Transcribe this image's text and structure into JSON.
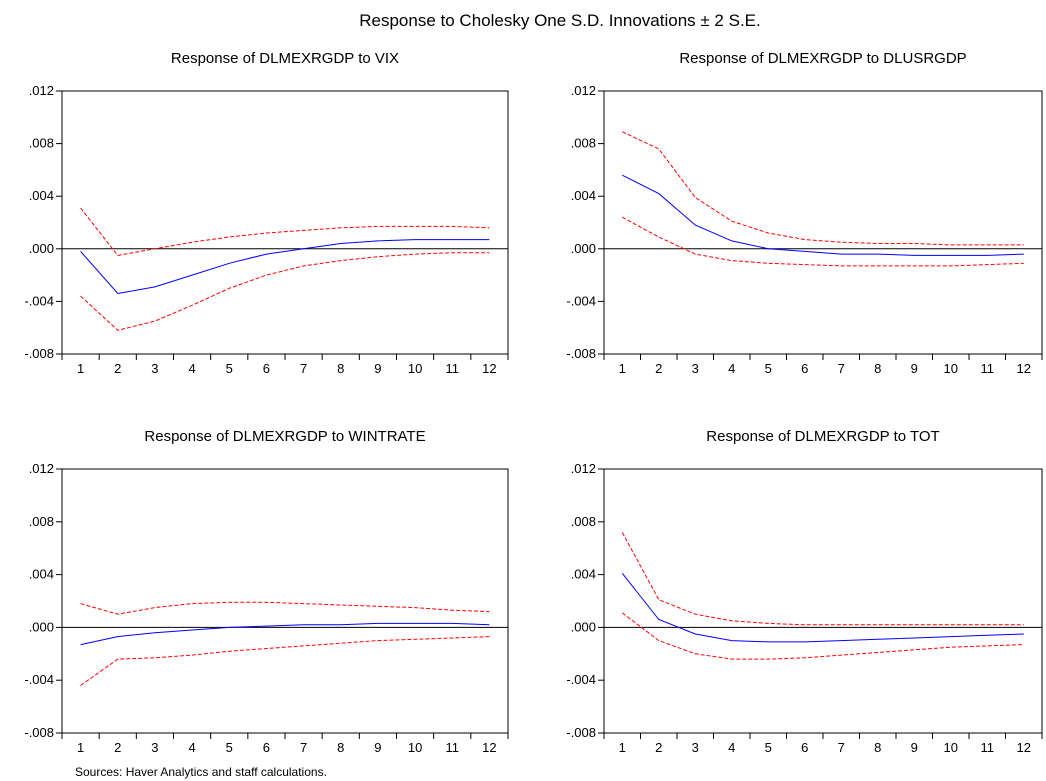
{
  "figure": {
    "title": "Response to Cholesky One S.D. Innovations ± 2 S.E.",
    "source": "Sources: Haver Analytics and staff calculations."
  },
  "chart_data": [
    {
      "type": "line",
      "title": "Response of DLMEXRGDP to VIX",
      "x": [
        1,
        2,
        3,
        4,
        5,
        6,
        7,
        8,
        9,
        10,
        11,
        12
      ],
      "ylim": [
        -0.008,
        0.012
      ],
      "yticks": [
        ".012",
        ".008",
        ".004",
        ".000",
        "-.004",
        "-.008"
      ],
      "yticks_values": [
        0.012,
        0.008,
        0.004,
        0.0,
        -0.004,
        -0.008
      ],
      "xticks": [
        "1",
        "2",
        "3",
        "4",
        "5",
        "6",
        "7",
        "8",
        "9",
        "10",
        "11",
        "12"
      ],
      "series": [
        {
          "role": "response",
          "color": "#0000ff",
          "dashed": false,
          "values": [
            -0.0002,
            -0.0034,
            -0.0029,
            -0.002,
            -0.0011,
            -0.0004,
            0.0,
            0.0004,
            0.0006,
            0.0007,
            0.0007,
            0.0007
          ]
        },
        {
          "role": "upper band",
          "color": "#ff0000",
          "dashed": true,
          "values": [
            0.0031,
            -0.0005,
            0.0,
            0.0005,
            0.0009,
            0.0012,
            0.0014,
            0.0016,
            0.0017,
            0.0017,
            0.0017,
            0.0016
          ]
        },
        {
          "role": "lower band",
          "color": "#ff0000",
          "dashed": true,
          "values": [
            -0.0036,
            -0.0062,
            -0.0055,
            -0.0043,
            -0.003,
            -0.002,
            -0.0013,
            -0.0009,
            -0.0006,
            -0.0004,
            -0.0003,
            -0.0003
          ]
        }
      ]
    },
    {
      "type": "line",
      "title": "Response of DLMEXRGDP to DLUSRGDP",
      "x": [
        1,
        2,
        3,
        4,
        5,
        6,
        7,
        8,
        9,
        10,
        11,
        12
      ],
      "ylim": [
        -0.008,
        0.012
      ],
      "yticks": [
        ".012",
        ".008",
        ".004",
        ".000",
        "-.004",
        "-.008"
      ],
      "yticks_values": [
        0.012,
        0.008,
        0.004,
        0.0,
        -0.004,
        -0.008
      ],
      "xticks": [
        "1",
        "2",
        "3",
        "4",
        "5",
        "6",
        "7",
        "8",
        "9",
        "10",
        "11",
        "12"
      ],
      "series": [
        {
          "role": "response",
          "color": "#0000ff",
          "dashed": false,
          "values": [
            0.0056,
            0.0042,
            0.0018,
            0.0006,
            0.0,
            -0.0002,
            -0.0004,
            -0.0004,
            -0.0005,
            -0.0005,
            -0.0005,
            -0.0004
          ]
        },
        {
          "role": "upper band",
          "color": "#ff0000",
          "dashed": true,
          "values": [
            0.0089,
            0.0076,
            0.0039,
            0.0021,
            0.0012,
            0.0007,
            0.0005,
            0.0004,
            0.0004,
            0.0003,
            0.0003,
            0.0003
          ]
        },
        {
          "role": "lower band",
          "color": "#ff0000",
          "dashed": true,
          "values": [
            0.0024,
            0.0009,
            -0.0004,
            -0.0009,
            -0.0011,
            -0.0012,
            -0.0013,
            -0.0013,
            -0.0013,
            -0.0013,
            -0.0012,
            -0.0011
          ]
        }
      ]
    },
    {
      "type": "line",
      "title": "Response of DLMEXRGDP to WINTRATE",
      "x": [
        1,
        2,
        3,
        4,
        5,
        6,
        7,
        8,
        9,
        10,
        11,
        12
      ],
      "ylim": [
        -0.008,
        0.012
      ],
      "yticks": [
        ".012",
        ".008",
        ".004",
        ".000",
        "-.004",
        "-.008"
      ],
      "yticks_values": [
        0.012,
        0.008,
        0.004,
        0.0,
        -0.004,
        -0.008
      ],
      "xticks": [
        "1",
        "2",
        "3",
        "4",
        "5",
        "6",
        "7",
        "8",
        "9",
        "10",
        "11",
        "12"
      ],
      "series": [
        {
          "role": "response",
          "color": "#0000ff",
          "dashed": false,
          "values": [
            -0.0013,
            -0.0007,
            -0.0004,
            -0.0002,
            0.0,
            0.0001,
            0.0002,
            0.0002,
            0.0003,
            0.0003,
            0.0003,
            0.0002
          ]
        },
        {
          "role": "upper band",
          "color": "#ff0000",
          "dashed": true,
          "values": [
            0.0018,
            0.001,
            0.0015,
            0.0018,
            0.0019,
            0.0019,
            0.0018,
            0.0017,
            0.0016,
            0.0015,
            0.0013,
            0.0012
          ]
        },
        {
          "role": "lower band",
          "color": "#ff0000",
          "dashed": true,
          "values": [
            -0.0044,
            -0.0024,
            -0.0023,
            -0.0021,
            -0.0018,
            -0.0016,
            -0.0014,
            -0.0012,
            -0.001,
            -0.0009,
            -0.0008,
            -0.0007
          ]
        }
      ]
    },
    {
      "type": "line",
      "title": "Response of DLMEXRGDP to TOT",
      "x": [
        1,
        2,
        3,
        4,
        5,
        6,
        7,
        8,
        9,
        10,
        11,
        12
      ],
      "ylim": [
        -0.008,
        0.012
      ],
      "yticks": [
        ".012",
        ".008",
        ".004",
        ".000",
        "-.004",
        "-.008"
      ],
      "yticks_values": [
        0.012,
        0.008,
        0.004,
        0.0,
        -0.004,
        -0.008
      ],
      "xticks": [
        "1",
        "2",
        "3",
        "4",
        "5",
        "6",
        "7",
        "8",
        "9",
        "10",
        "11",
        "12"
      ],
      "series": [
        {
          "role": "response",
          "color": "#0000ff",
          "dashed": false,
          "values": [
            0.0041,
            0.0006,
            -0.0005,
            -0.001,
            -0.0011,
            -0.0011,
            -0.001,
            -0.0009,
            -0.0008,
            -0.0007,
            -0.0006,
            -0.0005
          ]
        },
        {
          "role": "upper band",
          "color": "#ff0000",
          "dashed": true,
          "values": [
            0.0072,
            0.0021,
            0.001,
            0.0005,
            0.0003,
            0.0002,
            0.0002,
            0.0002,
            0.0002,
            0.0002,
            0.0002,
            0.0002
          ]
        },
        {
          "role": "lower band",
          "color": "#ff0000",
          "dashed": true,
          "values": [
            0.0011,
            -0.001,
            -0.002,
            -0.0024,
            -0.0024,
            -0.0023,
            -0.0021,
            -0.0019,
            -0.0017,
            -0.0015,
            -0.0014,
            -0.0013
          ]
        }
      ]
    }
  ]
}
